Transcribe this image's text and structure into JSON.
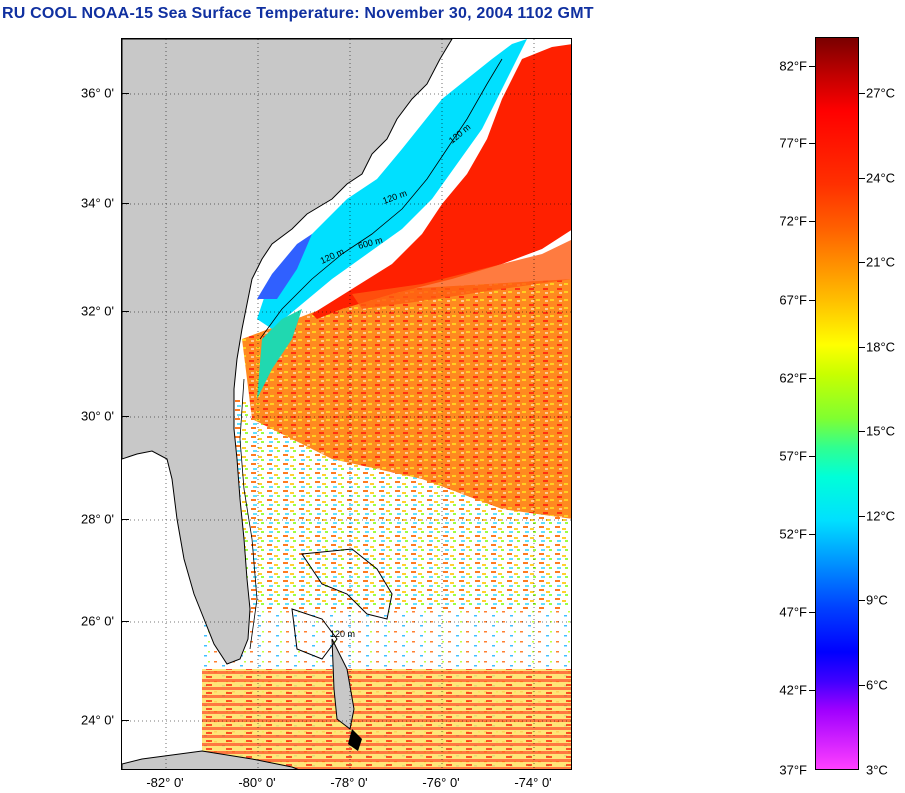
{
  "title": "RU COOL  NOAA-15  Sea Surface Temperature:  November 30, 2004 1102 GMT",
  "lat_labels": [
    "36° 0'",
    "34° 0'",
    "32° 0'",
    "30° 0'",
    "28° 0'",
    "26° 0'",
    "24° 0'"
  ],
  "lon_labels": [
    "-82° 0'",
    "-80° 0'",
    "-78° 0'",
    "-76° 0'",
    "-74° 0'"
  ],
  "colorbar": {
    "fahrenheit": [
      "82°F",
      "77°F",
      "72°F",
      "67°F",
      "62°F",
      "57°F",
      "52°F",
      "47°F",
      "42°F",
      "37°F"
    ],
    "celsius": [
      "27°C",
      "24°C",
      "21°C",
      "18°C",
      "15°C",
      "12°C",
      "9°C",
      "6°C",
      "3°C"
    ]
  },
  "contour_labels": [
    "120 m",
    "600 m",
    "120 m",
    "120 m",
    "120 m"
  ],
  "colors": {
    "title": "#1030a0",
    "land": "#c8c8c8",
    "warm": "#ff2000",
    "cool": "#00e0ff"
  }
}
